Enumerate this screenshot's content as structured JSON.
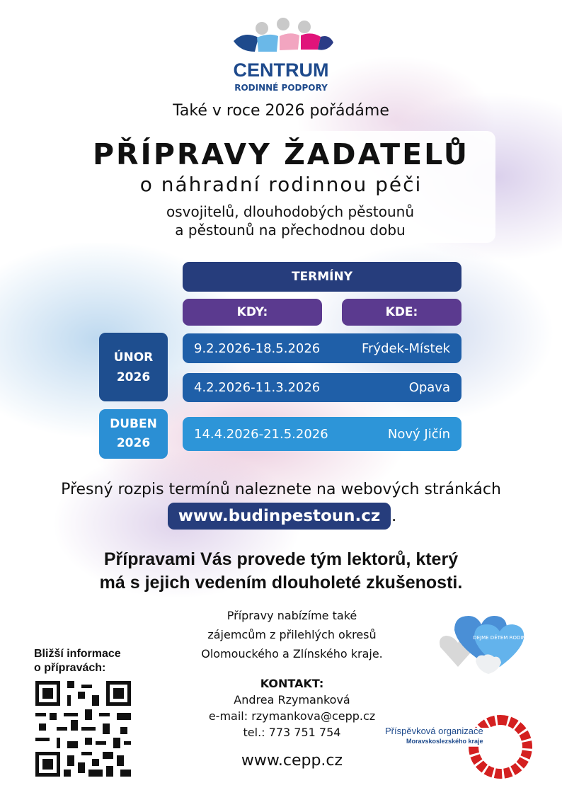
{
  "logo": {
    "name": "CENTRUM",
    "subtitle": "RODINNÉ PODPORY"
  },
  "intro": "Také v roce 2026 pořádáme",
  "title": "PŘÍPRAVY ŽADATELŮ",
  "subtitle": "o náhradní rodinnou péči",
  "audience": [
    "osvojitelů, dlouhodobých pěstounů",
    "a pěstounů na přechodnou dobu"
  ],
  "schedule": {
    "header": "TERMÍNY",
    "when_label": "KDY:",
    "where_label": "KDE:",
    "groups": [
      {
        "month": "ÚNOR",
        "year": "2026",
        "rows": [
          {
            "dates": "9.2.2026-18.5.2026",
            "place": "Frýdek-Místek"
          },
          {
            "dates": "4.2.2026-11.3.2026",
            "place": "Opava"
          }
        ]
      },
      {
        "month": "DUBEN",
        "year": "2026",
        "rows": [
          {
            "dates": "14.4.2026-21.5.2026",
            "place": "Nový Jičín"
          }
        ]
      }
    ]
  },
  "website_note": "Přesný rozpis termínů naleznete na webových stránkách",
  "website": "www.budinpestoun.cz",
  "website_suffix": ".",
  "lecturers": [
    "Přípravami Vás provede tým lektorů, který",
    "má s jejich vedením dlouholeté zkušenosti."
  ],
  "offer": [
    "Přípravy nabízíme také",
    "zájemcům z přilehlých okresů",
    "Olomouckého a Zlínského kraje."
  ],
  "contact": {
    "label": "KONTAKT:",
    "name": "Andrea Rzymanková",
    "email": "e-mail: rzymankova@cepp.cz",
    "phone": "tel.: 773 751 754",
    "web": "www.cepp.cz"
  },
  "qr_caption": [
    "Bližší informace",
    "o přípravách:"
  ],
  "campaign": "DEJME DĚTEM RODINU",
  "organization": [
    "Příspěvková organizace",
    "Moravskoslezského kraje"
  ]
}
